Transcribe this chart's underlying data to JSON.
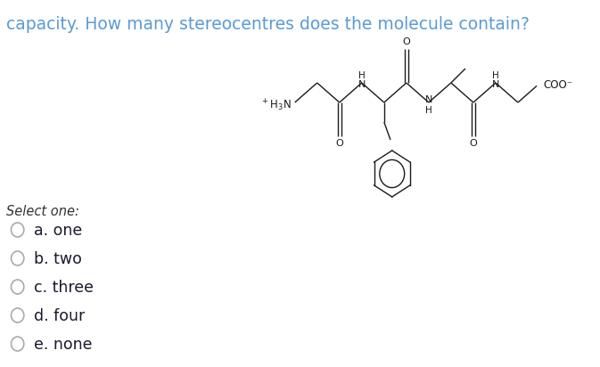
{
  "background_color": "#ffffff",
  "title_text": "capacity. How many stereocentres does the molecule contain?",
  "title_color": "#5b9bd5",
  "title_fontsize": 13.5,
  "select_label": "Select one:",
  "select_color": "#333333",
  "select_fontsize": 10.5,
  "options": [
    "a. one",
    "b. two",
    "c. three",
    "d. four",
    "e. none"
  ],
  "option_color": "#1a1a2e",
  "option_fontsize": 12.5,
  "circle_color": "#aaaaaa",
  "molecule_color": "#1a1a1a",
  "mol_lw": 1.0,
  "mol_fontsize": 8.0,
  "mol_label_fontsize": 8.0
}
